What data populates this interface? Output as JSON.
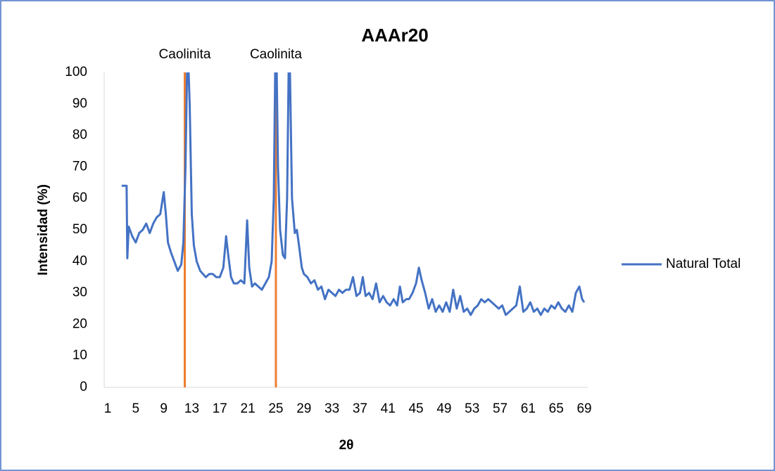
{
  "chart_data": {
    "type": "line",
    "title": "AAAr20",
    "x_label": "2θ",
    "y_label": "Intensidad (%)",
    "x": [
      3,
      3.5,
      3.7,
      3.8,
      4,
      4.5,
      5,
      5.5,
      6,
      6.5,
      7,
      7.5,
      8,
      8.5,
      9,
      9.3,
      9.6,
      10,
      10.5,
      11,
      11.5,
      11.8,
      12.1,
      12.4,
      12.7,
      13,
      13.3,
      13.7,
      14.2,
      15,
      15.5,
      16,
      16.5,
      17,
      17.5,
      17.9,
      18.2,
      18.6,
      19,
      19.5,
      20,
      20.5,
      20.9,
      21.2,
      21.6,
      22,
      22.5,
      23,
      23.5,
      24,
      24.4,
      24.7,
      25,
      25.3,
      25.6,
      26,
      26.3,
      26.6,
      26.9,
      27.3,
      27.7,
      28,
      28.3,
      28.7,
      29,
      29.5,
      30,
      30.5,
      31,
      31.5,
      32,
      32.5,
      33,
      33.5,
      34,
      34.5,
      35,
      35.5,
      36,
      36.5,
      37,
      37.4,
      37.8,
      38.3,
      38.8,
      39.3,
      39.8,
      40.3,
      40.8,
      41.3,
      41.8,
      42.3,
      42.7,
      43.1,
      43.6,
      44,
      44.5,
      45,
      45.4,
      45.8,
      46.3,
      46.8,
      47.3,
      47.8,
      48.3,
      48.8,
      49.3,
      49.8,
      50.3,
      50.8,
      51.3,
      51.8,
      52.3,
      52.8,
      53.3,
      53.8,
      54.3,
      54.8,
      55.3,
      55.8,
      56.3,
      56.8,
      57.3,
      57.8,
      58.3,
      58.8,
      59.3,
      59.8,
      60.3,
      60.8,
      61.3,
      61.8,
      62.3,
      62.8,
      63.3,
      63.8,
      64.3,
      64.8,
      65.3,
      65.8,
      66.3,
      66.8,
      67.3,
      67.8,
      68.3,
      68.7,
      69
    ],
    "series": [
      {
        "name": "Natural Total",
        "color": "#4472c4",
        "values": [
          64,
          64,
          64,
          41,
          51,
          48,
          46,
          49,
          50,
          52,
          49,
          52,
          54,
          55,
          62,
          55,
          46,
          43,
          40,
          37,
          39,
          46,
          70,
          110,
          90,
          55,
          45,
          40,
          37,
          35,
          36,
          36,
          35,
          35,
          38,
          48,
          42,
          35,
          33,
          33,
          34,
          33,
          53,
          38,
          32,
          33,
          32,
          31,
          33,
          35,
          40,
          60,
          120,
          70,
          50,
          42,
          41,
          60,
          115,
          60,
          49,
          50,
          45,
          38,
          36,
          35,
          33,
          34,
          31,
          32,
          28,
          31,
          30,
          29,
          31,
          30,
          31,
          31,
          35,
          29,
          30,
          35,
          29,
          30,
          28,
          33,
          27,
          29,
          27,
          26,
          28,
          26,
          32,
          27,
          28,
          28,
          30,
          33,
          38,
          34,
          30,
          25,
          28,
          24,
          26,
          24,
          27,
          24,
          31,
          25,
          29,
          24,
          25,
          23,
          25,
          26,
          28,
          27,
          28,
          27,
          26,
          25,
          26,
          23,
          24,
          25,
          26,
          32,
          24,
          25,
          27,
          24,
          25,
          23,
          25,
          24,
          26,
          25,
          27,
          25,
          24,
          26,
          24,
          30,
          32,
          28,
          27
        ]
      }
    ],
    "annotations": [
      {
        "x": 12,
        "label": "Caolinita"
      },
      {
        "x": 25,
        "label": "Caolinita"
      }
    ],
    "annotation_color": "#ed7d31",
    "xlim": [
      0.5,
      69.5
    ],
    "xticks": [
      1,
      5,
      9,
      13,
      17,
      21,
      25,
      29,
      33,
      37,
      41,
      45,
      49,
      53,
      57,
      61,
      65,
      69
    ],
    "ylim": [
      0,
      100
    ],
    "yticks": [
      0,
      10,
      20,
      30,
      40,
      50,
      60,
      70,
      80,
      90,
      100
    ],
    "grid": false,
    "legend": "right"
  }
}
